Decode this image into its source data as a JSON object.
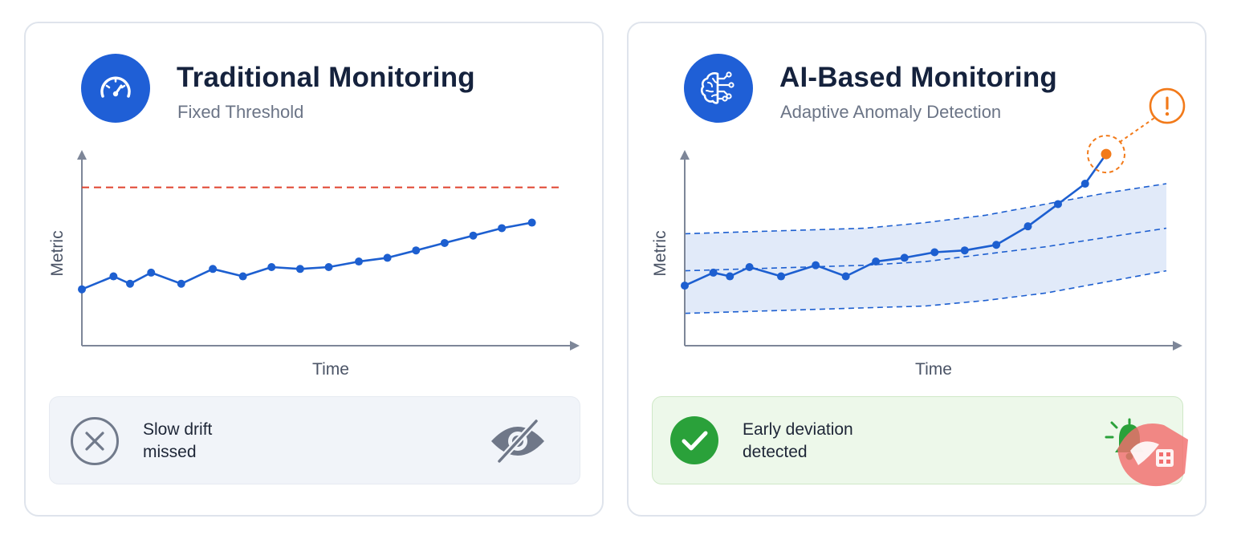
{
  "panels": [
    {
      "title": "Traditional Monitoring",
      "subtitle": "Fixed Threshold",
      "icon": "speedometer-icon",
      "status_text": "Slow drift\nmissed",
      "status_icon": "x-circle-icon",
      "status_side_icon": "eye-slash-icon"
    },
    {
      "title": "AI-Based Monitoring",
      "subtitle": "Adaptive Anomaly Detection",
      "icon": "ai-brain-icon",
      "status_text": "Early deviation\ndetected",
      "status_icon": "check-circle-icon",
      "status_side_icon": "alert-bell-icon"
    }
  ],
  "colors": {
    "accent": "#1f5fd6",
    "line": "#1d5fd0",
    "threshold": "#e0432f",
    "band": "#dce6f8",
    "anomaly": "#f27a1a",
    "success": "#2aa13a",
    "muted": "#6f7788"
  },
  "chart_data": [
    {
      "type": "line",
      "title": "Traditional Monitoring",
      "xlabel": "Time",
      "ylabel": "Metric",
      "xlim": [
        0,
        16
      ],
      "ylim": [
        0,
        100
      ],
      "threshold": 85,
      "series": [
        {
          "x": [
            0,
            1.05,
            1.6,
            2.3,
            3.3,
            4.35,
            5.35,
            6.3,
            7.25,
            8.2,
            9.2,
            10.15,
            11.1,
            12.05,
            13.0,
            13.95,
            14.95
          ],
          "values": [
            30,
            37,
            33,
            39,
            33,
            41,
            37,
            42,
            41,
            42,
            45,
            47,
            51,
            55,
            59,
            63,
            66
          ]
        }
      ]
    },
    {
      "type": "line",
      "title": "AI-Based Monitoring",
      "xlabel": "Time",
      "ylabel": "Metric",
      "xlim": [
        0,
        16
      ],
      "ylim": [
        0,
        100
      ],
      "band": {
        "x": [
          0,
          2,
          4,
          6,
          8,
          10,
          12,
          14,
          16
        ],
        "upper": [
          60,
          61,
          62,
          63,
          66,
          70,
          76,
          82,
          87
        ],
        "center": [
          40,
          41,
          42,
          43,
          45,
          49,
          53,
          58,
          63
        ],
        "lower": [
          17,
          18,
          19,
          20,
          21,
          24,
          28,
          34,
          40
        ]
      },
      "series": [
        {
          "x": [
            0,
            0.95,
            1.5,
            2.15,
            3.2,
            4.35,
            5.35,
            6.35,
            7.3,
            8.3,
            9.3,
            10.35,
            11.4,
            12.4,
            13.3,
            14.0
          ],
          "values": [
            32,
            39,
            37,
            42,
            37,
            43,
            37,
            45,
            47,
            50,
            51,
            54,
            64,
            76,
            87,
            103
          ]
        }
      ],
      "anomaly_index": 15
    }
  ]
}
